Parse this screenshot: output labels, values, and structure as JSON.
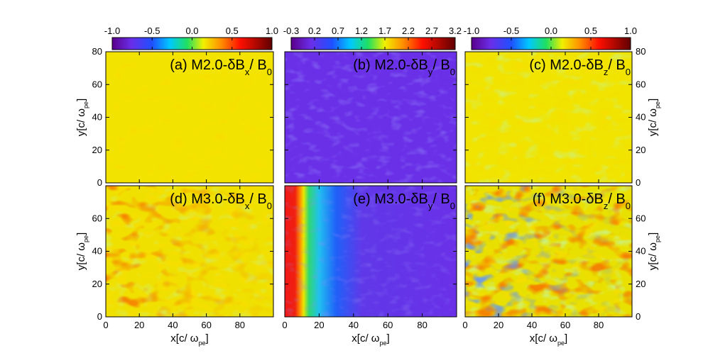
{
  "chart_data": [
    {
      "type": "heatmap",
      "title": [
        "(a) M2.0-δB",
        "x",
        "/ B",
        "0"
      ],
      "title_color": "#000000",
      "xlim": [
        0,
        100
      ],
      "xticks": [
        0,
        20,
        40,
        60,
        80
      ],
      "xaxis": "hidden",
      "ylim": [
        0,
        80
      ],
      "yticks": [
        0,
        20,
        40,
        60,
        80
      ],
      "yaxis": "left",
      "ylabel": [
        "y[c/ ω",
        "pe",
        "]"
      ],
      "colorbar": {
        "clim": [
          -1,
          1
        ],
        "cticks": [
          {
            "value": -1,
            "label": "-1.0"
          },
          -0.5,
          {
            "value": 0,
            "label": "0.0"
          },
          0.5,
          {
            "value": 1,
            "label": "1.0"
          }
        ]
      }
    },
    {
      "type": "heatmap",
      "title": [
        "(b) M2.0-δB",
        "y",
        "/ B",
        "0"
      ],
      "title_color": "#ffe860",
      "xlim": [
        0,
        100
      ],
      "xticks": [
        0,
        20,
        40,
        60,
        80
      ],
      "xaxis": "hidden",
      "ylim": [
        0,
        80
      ],
      "yticks": [
        0,
        20,
        40,
        60,
        80
      ],
      "yaxis": "hidden",
      "colorbar": {
        "clim": [
          -0.3,
          3.2
        ],
        "cticks": [
          -0.3,
          0.2,
          0.7,
          1.2,
          1.7,
          2.2,
          2.7,
          3.2
        ]
      }
    },
    {
      "type": "heatmap",
      "title": [
        "(c) M2.0-δB",
        "z",
        "/ B",
        "0"
      ],
      "title_color": "#000000",
      "xlim": [
        0,
        100
      ],
      "xticks": [
        0,
        20,
        40,
        60,
        80
      ],
      "xaxis": "hidden",
      "ylim": [
        0,
        80
      ],
      "yticks": [
        0,
        20,
        40,
        60,
        80
      ],
      "yaxis": "right",
      "ylabel": [
        "y[c/ ω",
        "pe",
        "]"
      ],
      "colorbar": {
        "clim": [
          -1,
          1
        ],
        "cticks": [
          {
            "value": -1,
            "label": "-1.0"
          },
          -0.5,
          {
            "value": 0,
            "label": "0.0"
          },
          0.5,
          {
            "value": 1,
            "label": "1.0"
          }
        ]
      }
    },
    {
      "type": "heatmap",
      "title": [
        "(d) M3.0-δB",
        "x",
        "/ B",
        "0"
      ],
      "title_color": "#000000",
      "xlim": [
        0,
        100
      ],
      "xticks": [
        0,
        20,
        40,
        60,
        80
      ],
      "xaxis": "bottom",
      "xlabel": [
        "x[c/ ω",
        "pe",
        "]"
      ],
      "ylim": [
        0,
        80
      ],
      "yticks": [
        0,
        20,
        40,
        60
      ],
      "yaxis": "left",
      "ylabel": [
        "y[c/ ω",
        "pe",
        "]"
      ]
    },
    {
      "type": "heatmap",
      "title": [
        "(e) M3.0-δB",
        "y",
        "/ B",
        "0"
      ],
      "title_color": "#ffe860",
      "xlim": [
        0,
        100
      ],
      "xticks": [
        0,
        20,
        40,
        60,
        80
      ],
      "xaxis": "bottom",
      "xlabel": [
        "x[c/ ω",
        "pe",
        "]"
      ],
      "ylim": [
        0,
        80
      ],
      "yticks": [
        0,
        20,
        40,
        60
      ],
      "yaxis": "hidden"
    },
    {
      "type": "heatmap",
      "title": [
        "(f) M3.0-δB",
        "z",
        "/ B",
        "0"
      ],
      "title_color": "#000000",
      "xlim": [
        0,
        100
      ],
      "xticks": [
        0,
        20,
        40,
        60,
        80
      ],
      "xaxis": "bottom",
      "xlabel": [
        "x[c/ ω",
        "pe",
        "]"
      ],
      "ylim": [
        0,
        80
      ],
      "yticks": [
        0,
        20,
        40,
        60
      ],
      "yaxis": "right",
      "ylabel": [
        "y[c/ ω",
        "pe",
        "]"
      ]
    }
  ]
}
